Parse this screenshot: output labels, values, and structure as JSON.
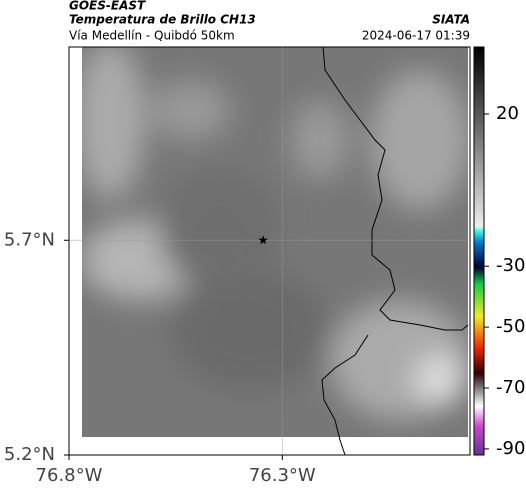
{
  "header": {
    "source": "GOES-EAST",
    "product": "Temperatura de Brillo CH13",
    "route": "Vía Medellín - Quibdó 50km",
    "agency": "SIATA",
    "timestamp": "2024-06-17 01:39"
  },
  "map": {
    "xlim": [
      -76.8,
      -75.86
    ],
    "ylim": [
      5.2,
      6.15
    ],
    "xticks": [
      {
        "value": -76.8,
        "label": "76.8°W"
      },
      {
        "value": -76.3,
        "label": "76.3°W"
      }
    ],
    "yticks": [
      {
        "value": 5.7,
        "label": "5.7°N"
      },
      {
        "value": 5.2,
        "label": "5.2°N"
      }
    ],
    "grid": true,
    "marker": {
      "lon": -76.345,
      "lat": 5.7
    }
  },
  "colorbar": {
    "lim": [
      -92,
      42
    ],
    "ticks": [
      20,
      -30,
      -50,
      -70,
      -90
    ]
  }
}
